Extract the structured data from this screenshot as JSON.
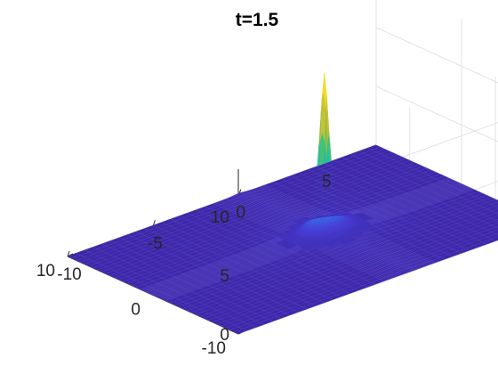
{
  "chart_data": {
    "type": "surface",
    "title": "t=1.5",
    "xlabel": "",
    "ylabel": "",
    "zlabel": "",
    "xlim": [
      -10,
      8
    ],
    "ylim": [
      -10,
      10
    ],
    "zlim": [
      0,
      14
    ],
    "x_ticks": [
      -10,
      -5,
      0,
      5
    ],
    "y_ticks": [
      -10,
      0,
      10
    ],
    "z_ticks": [
      0,
      5,
      10
    ],
    "x_tick_labels": [
      "-10",
      "-5",
      "0",
      "5"
    ],
    "y_tick_labels": [
      "-10",
      "0",
      "10"
    ],
    "z_tick_labels": [
      "0",
      "5",
      "10"
    ],
    "grid": true,
    "box": false,
    "colormap": "parula",
    "colormap_stops": [
      "#3e26a8",
      "#4741d8",
      "#2c87f4",
      "#17b2d4",
      "#2dc28c",
      "#a7bf2f",
      "#f3c53a",
      "#f9fb0e"
    ],
    "edge_colored": true,
    "peak": {
      "x": 0,
      "y": 0,
      "z": 13.5
    },
    "surface_shape": "sharp single peak centred at the origin on a near-zero plane, with a faint ridge running along the y-axis"
  }
}
